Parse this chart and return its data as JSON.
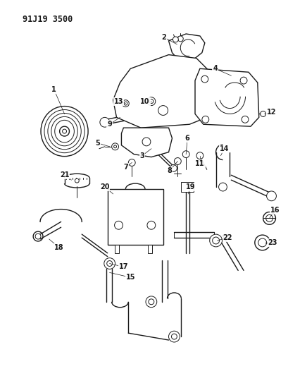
{
  "title": "91J19 3500",
  "bg_color": "#ffffff",
  "line_color": "#1a1a1a",
  "title_fontsize": 8.5,
  "label_fontsize": 7,
  "fig_width": 4.1,
  "fig_height": 5.33,
  "dpi": 100
}
